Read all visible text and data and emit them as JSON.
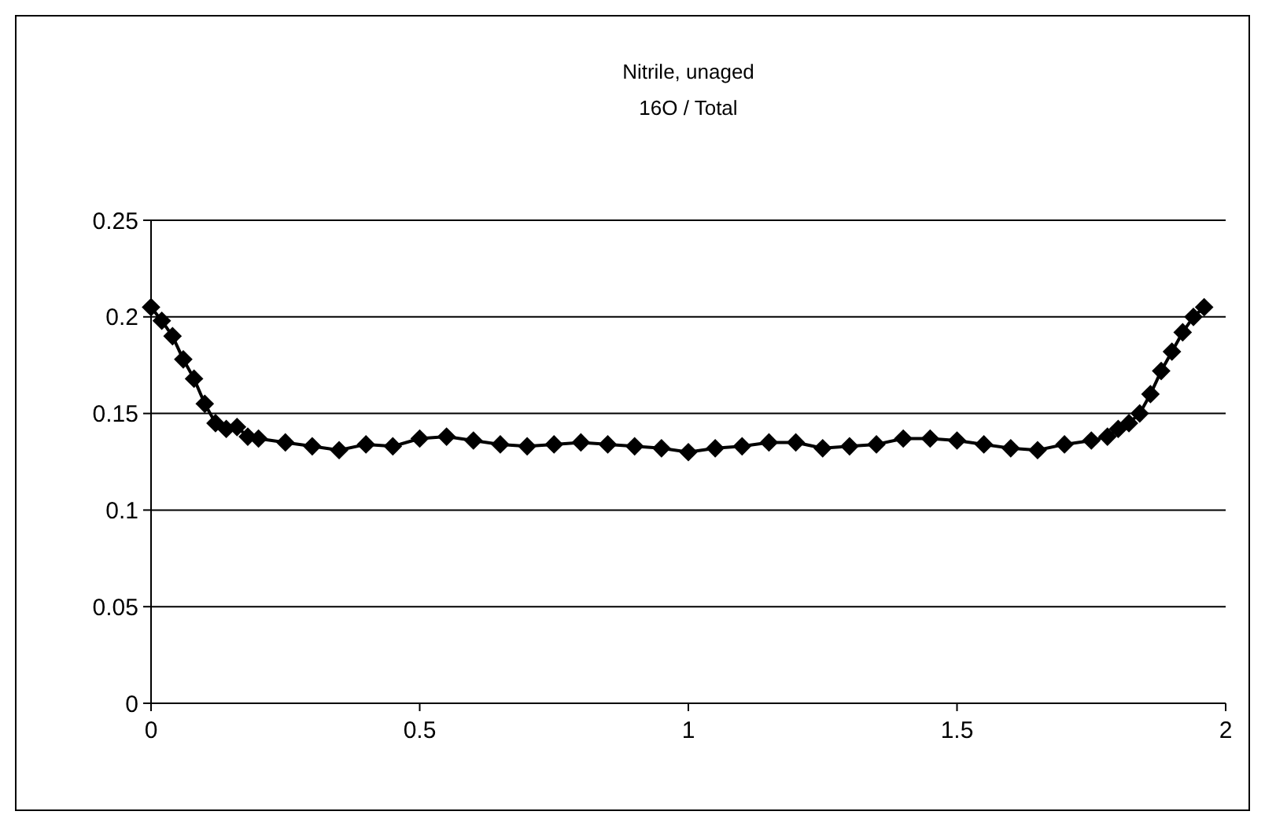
{
  "chart_data": {
    "type": "line",
    "title": "Nitrile, unaged",
    "subtitle": "16O / Total",
    "x": [
      0,
      0.02,
      0.04,
      0.06,
      0.08,
      0.1,
      0.12,
      0.14,
      0.16,
      0.18,
      0.2,
      0.25,
      0.3,
      0.35,
      0.4,
      0.45,
      0.5,
      0.55,
      0.6,
      0.65,
      0.7,
      0.75,
      0.8,
      0.85,
      0.9,
      0.95,
      1.0,
      1.05,
      1.1,
      1.15,
      1.2,
      1.25,
      1.3,
      1.35,
      1.4,
      1.45,
      1.5,
      1.55,
      1.6,
      1.65,
      1.7,
      1.75,
      1.78,
      1.8,
      1.82,
      1.84,
      1.86,
      1.88,
      1.9,
      1.92,
      1.94,
      1.96
    ],
    "series": [
      {
        "color": "#000000",
        "values": [
          0.205,
          0.198,
          0.19,
          0.178,
          0.168,
          0.155,
          0.145,
          0.142,
          0.143,
          0.138,
          0.137,
          0.135,
          0.133,
          0.131,
          0.134,
          0.133,
          0.137,
          0.138,
          0.136,
          0.134,
          0.133,
          0.134,
          0.135,
          0.134,
          0.133,
          0.132,
          0.13,
          0.132,
          0.133,
          0.135,
          0.135,
          0.132,
          0.133,
          0.134,
          0.137,
          0.137,
          0.136,
          0.134,
          0.132,
          0.131,
          0.134,
          0.136,
          0.138,
          0.142,
          0.145,
          0.15,
          0.16,
          0.172,
          0.182,
          0.192,
          0.2,
          0.205
        ]
      }
    ],
    "xlim": [
      0,
      2
    ],
    "xticks": [
      0,
      0.5,
      1,
      1.5,
      2
    ],
    "ylim": [
      0,
      0.25
    ],
    "yticks": [
      0,
      0.05,
      0.1,
      0.15,
      0.2,
      0.25
    ],
    "grid": "y",
    "marker": "diamond",
    "line_style": "solid"
  }
}
